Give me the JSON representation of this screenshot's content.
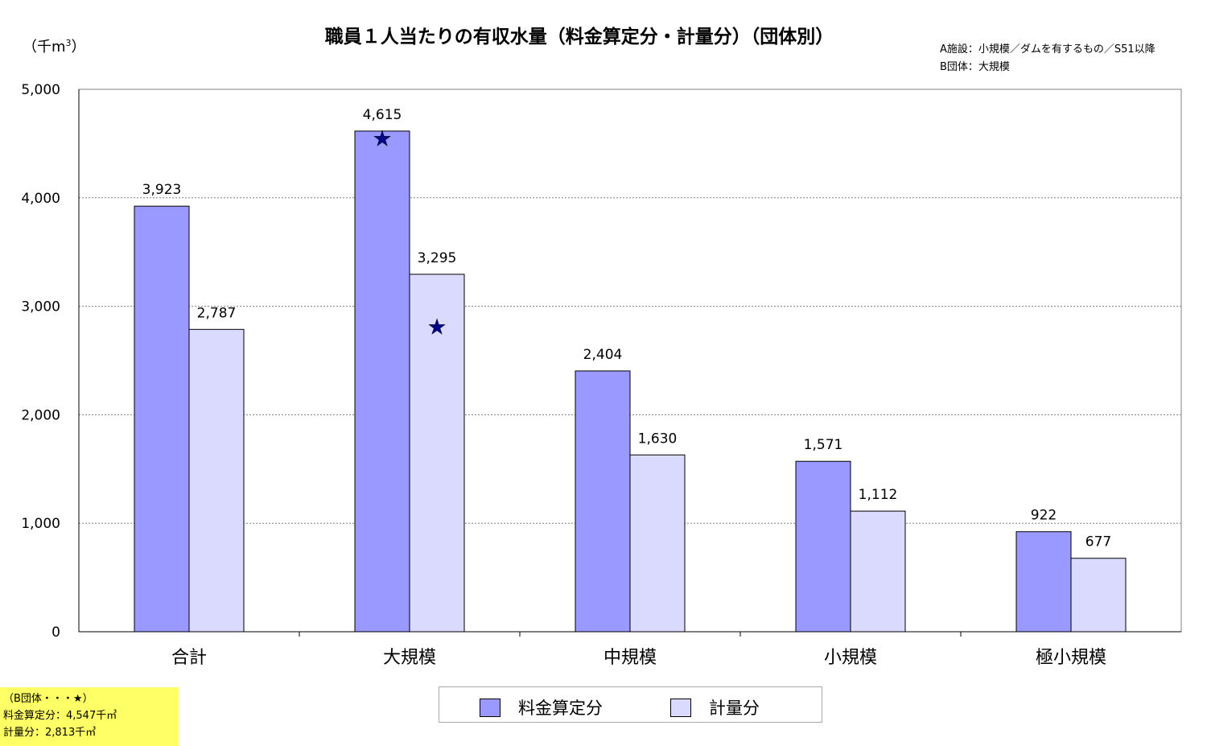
{
  "title": "職員１人当たりの有収水量（料金算定分・計量分）（団体別）",
  "unit_label": "千m",
  "unit_sup": "3",
  "note": {
    "line1": "A施設：小規模／ダムを有するもの／S51以降",
    "line2": "B団体：大規模"
  },
  "b_note": {
    "line1": "（B団体・・・★）",
    "line2": "料金算定分：4,547千㎥",
    "line3": "計量分：2,813千㎥"
  },
  "colors": {
    "series1": "#9999ff",
    "series2": "#dadaff",
    "star": "#00008b",
    "grid": "#808080",
    "note_bg": "#ffff66"
  },
  "chart_data": {
    "type": "bar",
    "title": "職員１人当たりの有収水量（料金算定分・計量分）（団体別）",
    "ylabel": "千m3",
    "ylim": [
      0,
      5000
    ],
    "yticks": [
      "0",
      "1,000",
      "2,000",
      "3,000",
      "4,000",
      "5,000"
    ],
    "ytick_values": [
      0,
      1000,
      2000,
      3000,
      4000,
      5000
    ],
    "categories": [
      "合計",
      "大規模",
      "中規模",
      "小規模",
      "極小規模"
    ],
    "series": [
      {
        "name": "料金算定分",
        "values": [
          3923,
          4615,
          2404,
          1571,
          922
        ],
        "labels": [
          "3,923",
          "4,615",
          "2,404",
          "1,571",
          "922"
        ]
      },
      {
        "name": "計量分",
        "values": [
          2787,
          3295,
          1630,
          1112,
          677
        ],
        "labels": [
          "2,787",
          "3,295",
          "1,630",
          "1,112",
          "677"
        ]
      }
    ],
    "markers": [
      {
        "symbol": "★",
        "category": "大規模",
        "series": "料金算定分",
        "value": 4547
      },
      {
        "symbol": "★",
        "category": "大規模",
        "series": "計量分",
        "value": 2813
      }
    ],
    "grid": true,
    "legend": "bottom"
  }
}
